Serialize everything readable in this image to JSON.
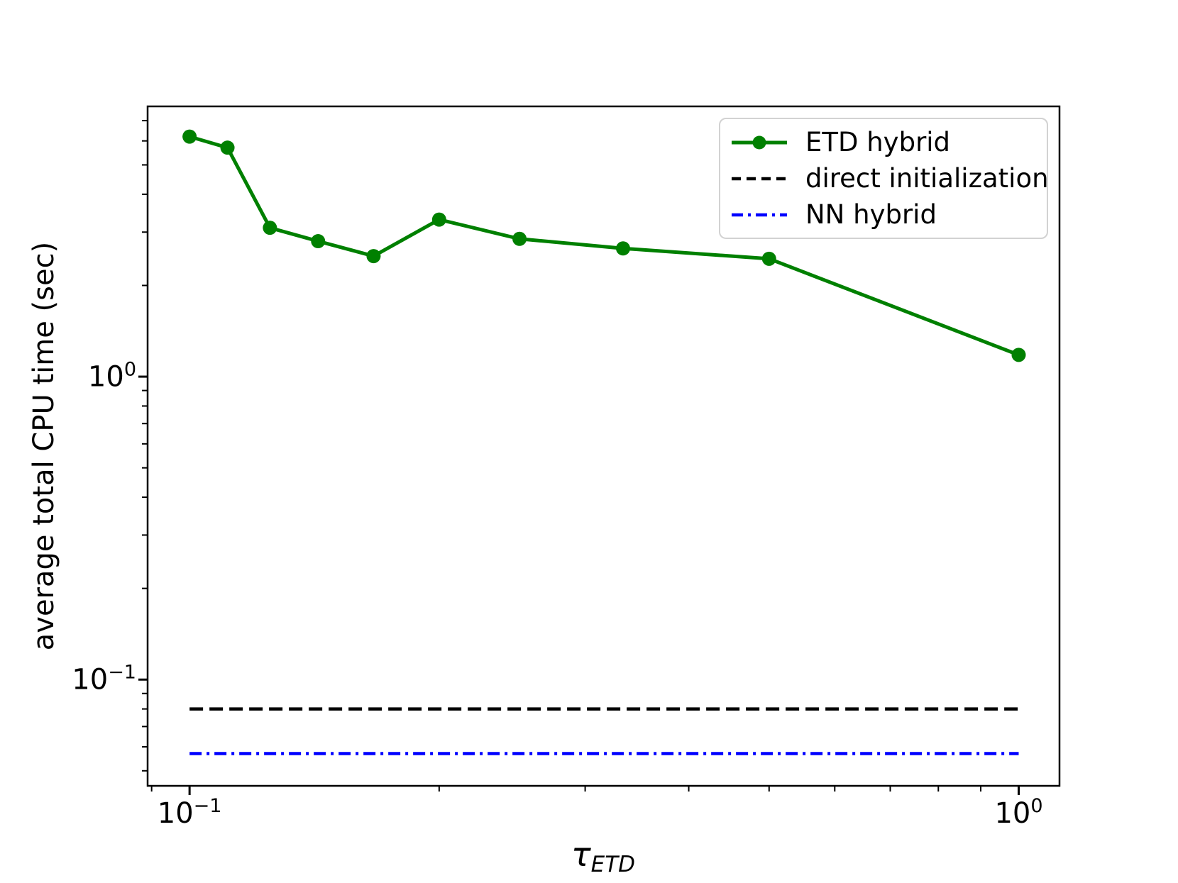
{
  "chart_data": {
    "type": "line",
    "title": "",
    "xlabel": "τ_ETD",
    "xlabel_tau": "τ",
    "xlabel_sub": "ETD",
    "ylabel": "average total CPU time (sec)",
    "x_scale": "log",
    "y_scale": "log",
    "xlim": [
      0.089,
      1.12
    ],
    "ylim": [
      0.0446,
      7.8
    ],
    "grid": false,
    "legend_position": "upper right",
    "x_ticks": [
      {
        "value": 0.1,
        "label_base": "10",
        "label_exp": "−1"
      },
      {
        "value": 1.0,
        "label_base": "10",
        "label_exp": "0"
      }
    ],
    "y_ticks": [
      {
        "value": 1.0,
        "label_base": "10",
        "label_exp": "0"
      },
      {
        "value": 0.1,
        "label_base": "10",
        "label_exp": "−1"
      }
    ],
    "series": [
      {
        "name": "ETD hybrid",
        "color": "#008000",
        "linestyle": "solid",
        "marker": "circle",
        "x": [
          0.1,
          0.1111,
          0.125,
          0.1429,
          0.1667,
          0.2,
          0.25,
          0.3333,
          0.5,
          1.0
        ],
        "y": [
          6.2,
          5.7,
          3.1,
          2.8,
          2.5,
          3.3,
          2.85,
          2.65,
          2.45,
          1.18
        ]
      },
      {
        "name": "direct initialization",
        "color": "#000000",
        "linestyle": "dashed",
        "marker": null,
        "x": [
          0.1,
          1.0
        ],
        "y": [
          0.08,
          0.08
        ]
      },
      {
        "name": "NN hybrid",
        "color": "#0000ff",
        "linestyle": "dashdot",
        "marker": null,
        "x": [
          0.1,
          1.0
        ],
        "y": [
          0.057,
          0.057
        ]
      }
    ]
  }
}
